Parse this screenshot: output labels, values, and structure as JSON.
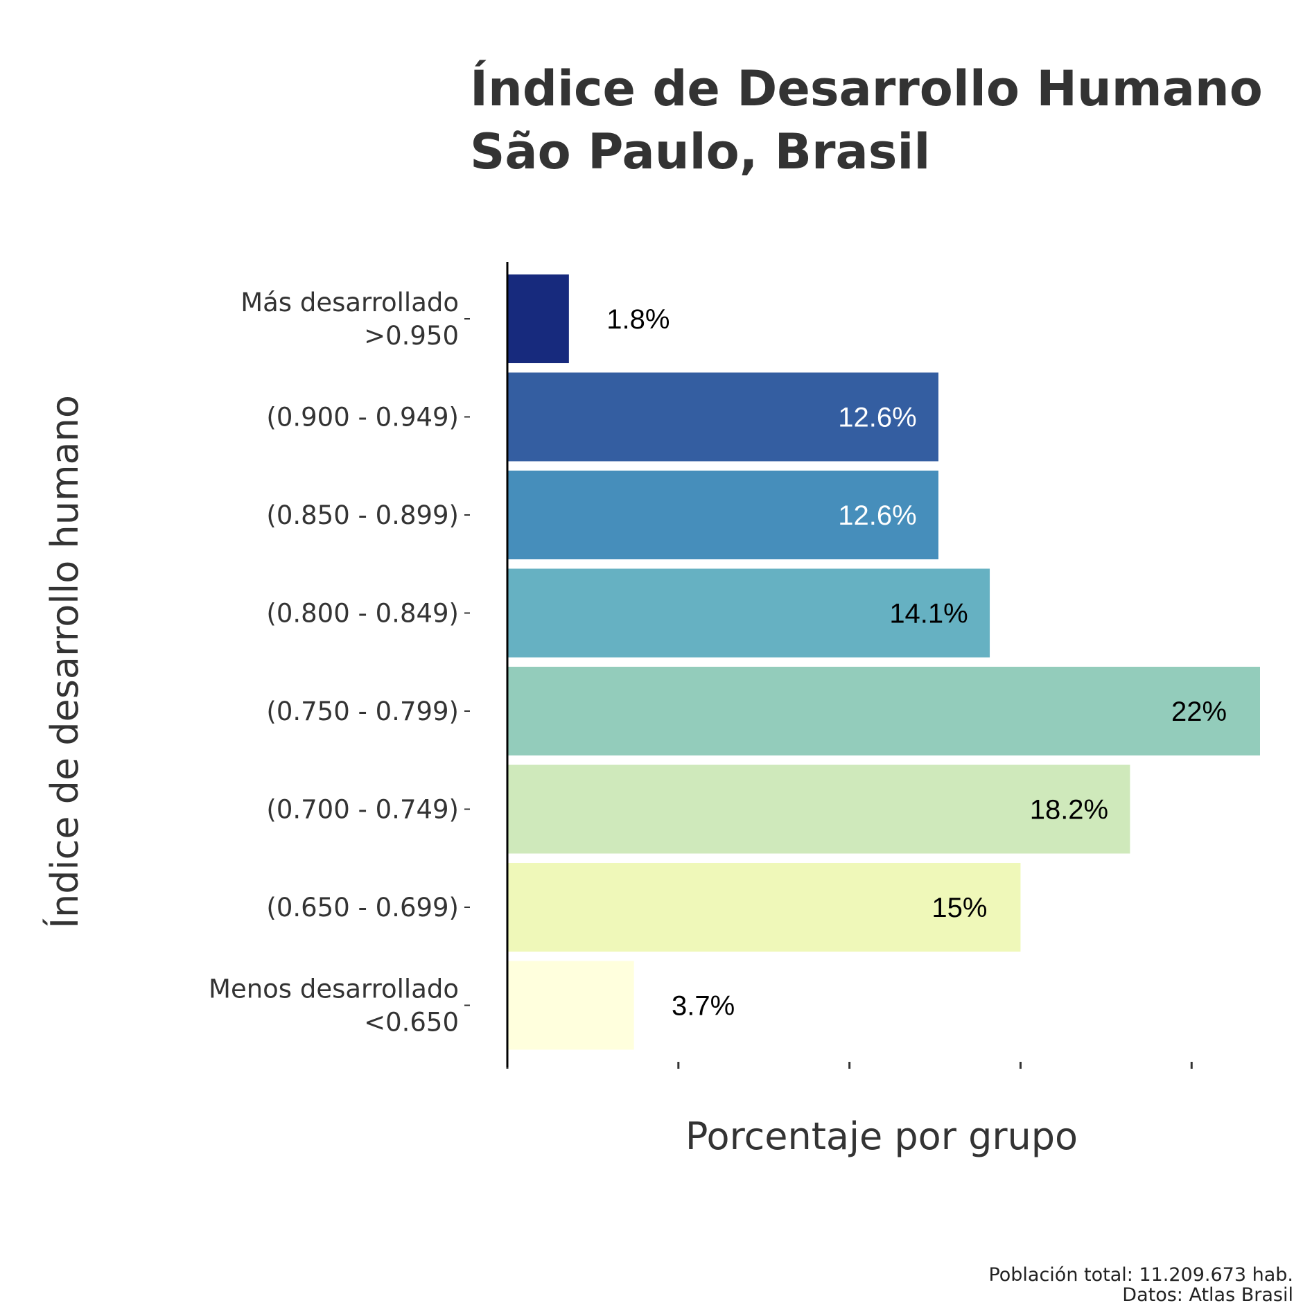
{
  "chart_data": {
    "type": "bar",
    "orientation": "horizontal",
    "title": [
      "Índice de Desarrollo Humano",
      "São Paulo, Brasil"
    ],
    "xlabel": "Porcentaje por grupo",
    "ylabel": "Índice de desarrollo humano",
    "categories": [
      [
        "Más desarrollado",
        ">0.950"
      ],
      [
        "(0.900 - 0.949)"
      ],
      [
        "(0.850 - 0.899)"
      ],
      [
        "(0.800 - 0.849)"
      ],
      [
        "(0.750 - 0.799)"
      ],
      [
        "(0.700 - 0.749)"
      ],
      [
        "(0.650 - 0.699)"
      ],
      [
        "Menos desarrollado",
        "<0.650"
      ]
    ],
    "values": [
      1.8,
      12.6,
      12.6,
      14.1,
      22.0,
      18.2,
      15.0,
      3.7
    ],
    "labels": [
      "1.8%",
      "12.6%",
      "12.6%",
      "14.1%",
      "22%",
      "18.2%",
      "15%",
      "3.7%"
    ],
    "colors": [
      "#172a7d",
      "#345ea1",
      "#468ebb",
      "#66b1c2",
      "#93ccbb",
      "#cfe9bb",
      "#eff8b9",
      "#ffffdd"
    ],
    "label_colors": [
      "#000000",
      "#ffffff",
      "#ffffff",
      "#000000",
      "#000000",
      "#000000",
      "#000000",
      "#000000"
    ],
    "xlim": [
      0,
      22
    ],
    "x_ticks": [
      0,
      5,
      10,
      15,
      20
    ],
    "x_tick_labels_shown": false,
    "grid": false,
    "caption": [
      "Población total: 11.209.673 hab.",
      "Datos: Atlas Brasil"
    ]
  }
}
